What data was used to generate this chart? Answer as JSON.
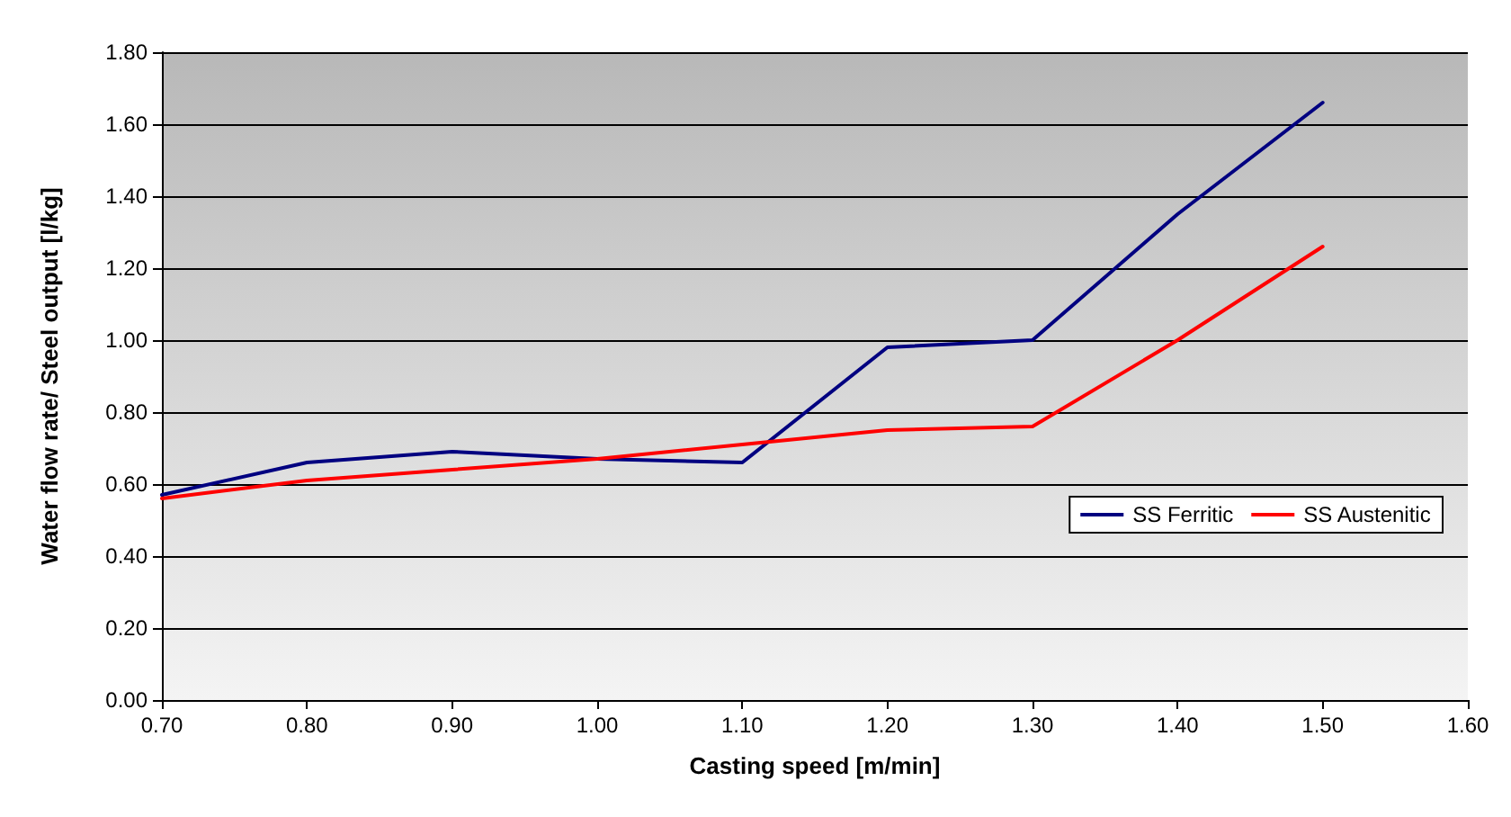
{
  "chart_data": {
    "type": "line",
    "xlabel": "Casting speed [m/min]",
    "ylabel": "Water flow rate/ Steel output [l/kg]",
    "x": [
      0.7,
      0.8,
      0.9,
      1.0,
      1.1,
      1.2,
      1.3,
      1.4,
      1.5
    ],
    "series": [
      {
        "name": "SS Ferritic",
        "color": "#000080",
        "values": [
          0.57,
          0.66,
          0.69,
          0.67,
          0.66,
          0.98,
          1.0,
          1.35,
          1.66
        ]
      },
      {
        "name": "SS Austenitic",
        "color": "#ff0000",
        "values": [
          0.56,
          0.61,
          0.64,
          0.67,
          0.71,
          0.75,
          0.76,
          1.0,
          1.26
        ]
      }
    ],
    "xlim": [
      0.7,
      1.6
    ],
    "xticks": [
      {
        "value": 0.7,
        "label": "0.70"
      },
      {
        "value": 0.8,
        "label": "0.80"
      },
      {
        "value": 0.9,
        "label": "0.90"
      },
      {
        "value": 1.0,
        "label": "1.00"
      },
      {
        "value": 1.1,
        "label": "1.10"
      },
      {
        "value": 1.2,
        "label": "1.20"
      },
      {
        "value": 1.3,
        "label": "1.30"
      },
      {
        "value": 1.4,
        "label": "1.40"
      },
      {
        "value": 1.5,
        "label": "1.50"
      },
      {
        "value": 1.6,
        "label": "1.60"
      }
    ],
    "ylim": [
      0,
      1.8
    ],
    "yticks": [
      {
        "value": 0,
        "label": "0.00"
      },
      {
        "value": 0.2,
        "label": "0.20"
      },
      {
        "value": 0.4,
        "label": "0.40"
      },
      {
        "value": 0.6,
        "label": "0.60"
      },
      {
        "value": 0.8,
        "label": "0.80"
      },
      {
        "value": 1.0,
        "label": "1.00"
      },
      {
        "value": 1.2,
        "label": "1.20"
      },
      {
        "value": 1.4,
        "label": "1.40"
      },
      {
        "value": 1.6,
        "label": "1.60"
      },
      {
        "value": 1.8,
        "label": "1.80"
      }
    ],
    "grid": "y",
    "legend": "right",
    "marker": "none",
    "line_style": "solid"
  }
}
